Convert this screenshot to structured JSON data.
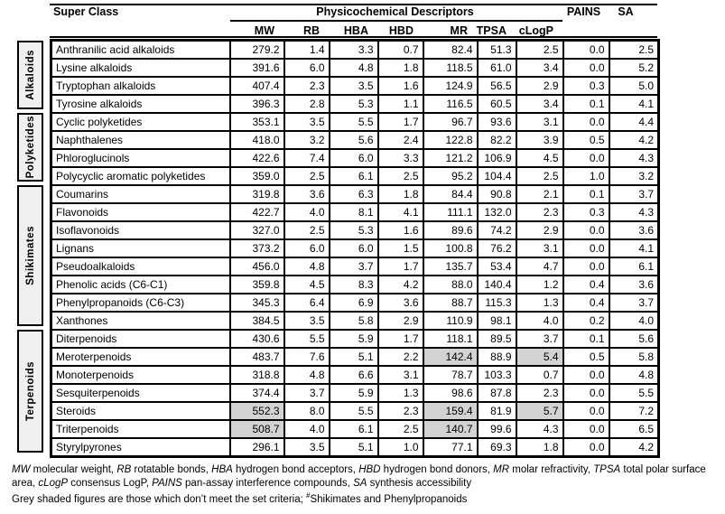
{
  "header": {
    "super_class": "Super Class",
    "descriptors_title": "Physicochemical Descriptors",
    "pains": "PAINS",
    "sa": "SA",
    "sub_columns": [
      "MW",
      "RB",
      "HBA",
      "HBD",
      "MR",
      "TPSA",
      "cLogP"
    ]
  },
  "groups": [
    {
      "label": "Alkaloids",
      "rows": 4
    },
    {
      "label": "Polyketides",
      "rows": 4
    },
    {
      "label": "Shikimates",
      "rows": 8
    },
    {
      "label": "Terpenoids",
      "rows": 7
    }
  ],
  "table": {
    "columns": [
      "Super Class",
      "MW",
      "RB",
      "HBA",
      "HBD",
      "MR",
      "TPSA",
      "cLogP",
      "PAINS",
      "SA"
    ],
    "rows": [
      {
        "group": "Alkaloids",
        "class": "Anthranilic acid alkaloids",
        "values": [
          "279.2",
          "1.4",
          "3.3",
          "0.7",
          "82.4",
          "51.3",
          "2.5",
          "0.0",
          "2.5"
        ],
        "shaded": []
      },
      {
        "group": "Alkaloids",
        "class": "Lysine alkaloids",
        "values": [
          "391.6",
          "6.0",
          "4.8",
          "1.8",
          "118.5",
          "61.0",
          "3.4",
          "0.0",
          "5.2"
        ],
        "shaded": []
      },
      {
        "group": "Alkaloids",
        "class": "Tryptophan alkaloids",
        "values": [
          "407.4",
          "2.3",
          "3.5",
          "1.6",
          "124.9",
          "56.5",
          "2.9",
          "0.3",
          "5.0"
        ],
        "shaded": []
      },
      {
        "group": "Alkaloids",
        "class": "Tyrosine alkaloids",
        "values": [
          "396.3",
          "2.8",
          "5.3",
          "1.1",
          "116.5",
          "60.5",
          "3.4",
          "0.1",
          "4.1"
        ],
        "shaded": []
      },
      {
        "group": "Polyketides",
        "class": "Cyclic polyketides",
        "values": [
          "353.1",
          "3.5",
          "5.5",
          "1.7",
          "96.7",
          "93.6",
          "3.1",
          "0.0",
          "4.4"
        ],
        "shaded": []
      },
      {
        "group": "Polyketides",
        "class": "Naphthalenes",
        "values": [
          "418.0",
          "3.2",
          "5.6",
          "2.4",
          "122.8",
          "82.2",
          "3.9",
          "0.5",
          "4.2"
        ],
        "shaded": []
      },
      {
        "group": "Polyketides",
        "class": "Phloroglucinols",
        "values": [
          "422.6",
          "7.4",
          "6.0",
          "3.3",
          "121.2",
          "106.9",
          "4.5",
          "0.0",
          "4.3"
        ],
        "shaded": []
      },
      {
        "group": "Polyketides",
        "class": "Polycyclic aromatic polyketides",
        "values": [
          "359.0",
          "2.5",
          "6.1",
          "2.5",
          "95.2",
          "104.4",
          "2.5",
          "1.0",
          "3.2"
        ],
        "shaded": []
      },
      {
        "group": "Shikimates",
        "class": "Coumarins",
        "values": [
          "319.8",
          "3.6",
          "6.3",
          "1.8",
          "84.4",
          "90.8",
          "2.1",
          "0.1",
          "3.7"
        ],
        "shaded": []
      },
      {
        "group": "Shikimates",
        "class": "Flavonoids",
        "values": [
          "422.7",
          "4.0",
          "8.1",
          "4.1",
          "111.1",
          "132.0",
          "2.3",
          "0.3",
          "4.3"
        ],
        "shaded": []
      },
      {
        "group": "Shikimates",
        "class": "Isoflavonoids",
        "values": [
          "327.0",
          "2.5",
          "5.3",
          "1.6",
          "89.6",
          "74.2",
          "2.9",
          "0.0",
          "3.6"
        ],
        "shaded": []
      },
      {
        "group": "Shikimates",
        "class": "Lignans",
        "values": [
          "373.2",
          "6.0",
          "6.0",
          "1.5",
          "100.8",
          "76.2",
          "3.1",
          "0.0",
          "4.1"
        ],
        "shaded": []
      },
      {
        "group": "Shikimates",
        "class": "Pseudoalkaloids",
        "values": [
          "456.0",
          "4.8",
          "3.7",
          "1.7",
          "135.7",
          "53.4",
          "4.7",
          "0.0",
          "6.1"
        ],
        "shaded": []
      },
      {
        "group": "Shikimates",
        "class": "Phenolic acids (C6-C1)",
        "values": [
          "359.8",
          "4.5",
          "8.3",
          "4.2",
          "88.0",
          "140.4",
          "1.2",
          "0.4",
          "3.6"
        ],
        "shaded": []
      },
      {
        "group": "Shikimates",
        "class": "Phenylpropanoids (C6-C3)",
        "values": [
          "345.3",
          "6.4",
          "6.9",
          "3.6",
          "88.7",
          "115.3",
          "1.3",
          "0.4",
          "3.7"
        ],
        "shaded": []
      },
      {
        "group": "Shikimates",
        "class": "Xanthones",
        "values": [
          "384.5",
          "3.5",
          "5.8",
          "2.9",
          "110.9",
          "98.1",
          "4.0",
          "0.2",
          "4.0"
        ],
        "shaded": []
      },
      {
        "group": "Terpenoids",
        "class": "Diterpenoids",
        "values": [
          "430.6",
          "5.5",
          "5.9",
          "1.7",
          "118.1",
          "89.5",
          "3.7",
          "0.1",
          "5.6"
        ],
        "shaded": []
      },
      {
        "group": "Terpenoids",
        "class": "Meroterpenoids",
        "values": [
          "483.7",
          "7.6",
          "5.1",
          "2.2",
          "142.4",
          "88.9",
          "5.4",
          "0.5",
          "5.8"
        ],
        "shaded": [
          4,
          6
        ]
      },
      {
        "group": "Terpenoids",
        "class": "Monoterpenoids",
        "values": [
          "318.8",
          "4.8",
          "6.6",
          "3.1",
          "78.7",
          "103.3",
          "0.7",
          "0.0",
          "4.8"
        ],
        "shaded": []
      },
      {
        "group": "Terpenoids",
        "class": "Sesquiterpenoids",
        "values": [
          "374.4",
          "3.7",
          "5.9",
          "1.3",
          "98.6",
          "87.8",
          "2.3",
          "0.0",
          "5.5"
        ],
        "shaded": []
      },
      {
        "group": "Terpenoids",
        "class": "Steroids",
        "values": [
          "552.3",
          "8.0",
          "5.5",
          "2.3",
          "159.4",
          "81.9",
          "5.7",
          "0.0",
          "7.2"
        ],
        "shaded": [
          0,
          4,
          6
        ]
      },
      {
        "group": "Terpenoids",
        "class": "Triterpenoids",
        "values": [
          "508.7",
          "4.0",
          "6.1",
          "2.5",
          "140.7",
          "99.6",
          "4.3",
          "0.0",
          "6.5"
        ],
        "shaded": [
          0,
          4
        ]
      },
      {
        "group": "Terpenoids",
        "class": "Styrylpyrones",
        "values": [
          "296.1",
          "3.5",
          "5.1",
          "1.0",
          "77.1",
          "69.3",
          "1.8",
          "0.0",
          "4.2"
        ],
        "shaded": []
      }
    ]
  },
  "colors": {
    "shaded_cell": "#d3d3d3",
    "group_box_bg": "#f0f0f0",
    "border": "#000000"
  },
  "footnotes": {
    "abbreviations": [
      {
        "abbr": "MW",
        "desc": "molecular weight"
      },
      {
        "abbr": "RB",
        "desc": "rotatable bonds"
      },
      {
        "abbr": "HBA",
        "desc": "hydrogen bond acceptors"
      },
      {
        "abbr": "HBD",
        "desc": "hydrogen bond donors"
      },
      {
        "abbr": "MR",
        "desc": "molar refractivity"
      },
      {
        "abbr": "TPSA",
        "desc": "total polar surface area"
      },
      {
        "abbr": "cLogP",
        "desc": "consensus LogP"
      },
      {
        "abbr": "PAINS",
        "desc": "pan-assay interference compounds"
      },
      {
        "abbr": "SA",
        "desc": "synthesis accessibility"
      }
    ],
    "shading_note_prefix": "Grey shaded figures are those which don’t meet the set criteria; ",
    "shading_note_marker": "#",
    "shading_note_suffix": "Shikimates and Phenylpropanoids"
  }
}
